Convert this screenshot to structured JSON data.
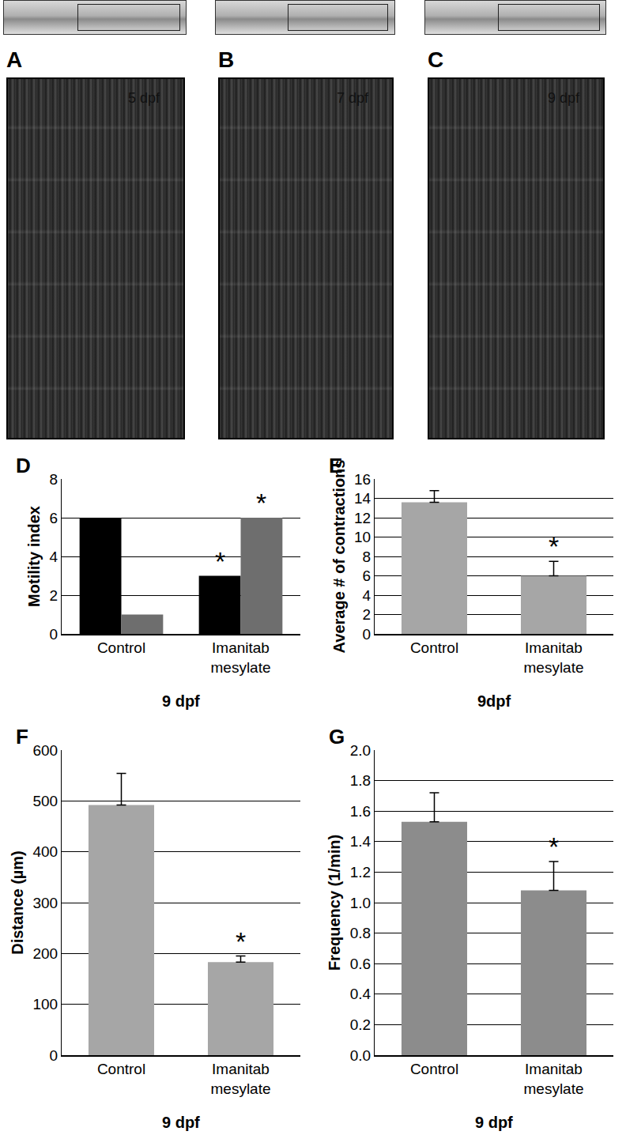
{
  "image_panels": [
    {
      "letter": "A",
      "label": "5 dpf"
    },
    {
      "letter": "B",
      "label": "7 dpf"
    },
    {
      "letter": "C",
      "label": "9 dpf"
    }
  ],
  "chart_data": [
    {
      "type": "bar",
      "title": "D",
      "xlabel": "9 dpf",
      "ylabel": "Motility index",
      "categories": [
        "Control",
        "Imanitab mesylate"
      ],
      "series": [
        {
          "color": "#000000",
          "values": [
            6,
            3
          ]
        },
        {
          "color": "#6e6e6e",
          "values": [
            1,
            6
          ]
        }
      ],
      "ylim": [
        0,
        8
      ],
      "yticks": [
        0,
        2,
        4,
        6,
        8
      ],
      "grid": true,
      "annotations": [
        {
          "text": "*",
          "category": 1,
          "series": 0
        },
        {
          "text": "*",
          "category": 1,
          "series": 1
        }
      ]
    },
    {
      "type": "bar",
      "title": "E",
      "xlabel": "9dpf",
      "ylabel": "Average # of contractions",
      "categories": [
        "Control",
        "Imanitab mesylate"
      ],
      "series": [
        {
          "color": "#a6a6a6",
          "values": [
            13.6,
            6.0
          ],
          "errors": [
            1.2,
            1.5
          ]
        }
      ],
      "ylim": [
        0,
        16
      ],
      "yticks": [
        0,
        2,
        4,
        6,
        8,
        10,
        12,
        14,
        16
      ],
      "grid": true,
      "annotations": [
        {
          "text": "*",
          "category": 1,
          "series": 0
        }
      ]
    },
    {
      "type": "bar",
      "title": "F",
      "xlabel": "9 dpf",
      "ylabel": "Distance (µm)",
      "categories": [
        "Control",
        "Imanitab mesylate"
      ],
      "series": [
        {
          "color": "#a6a6a6",
          "values": [
            492,
            183
          ],
          "errors": [
            62,
            12
          ]
        }
      ],
      "ylim": [
        0,
        600
      ],
      "yticks": [
        0,
        100,
        200,
        300,
        400,
        500,
        600
      ],
      "grid": true,
      "annotations": [
        {
          "text": "*",
          "category": 1,
          "series": 0
        }
      ]
    },
    {
      "type": "bar",
      "title": "G",
      "xlabel": "9 dpf",
      "ylabel": "Frequency (1/min)",
      "categories": [
        "Control",
        "Imanitab mesylate"
      ],
      "series": [
        {
          "color": "#8c8c8c",
          "values": [
            1.53,
            1.08
          ],
          "errors": [
            0.19,
            0.19
          ]
        }
      ],
      "ylim": [
        0,
        2
      ],
      "yticks": [
        {
          "value": 0,
          "label": "0.0"
        },
        {
          "value": 0.2,
          "label": "0.2"
        },
        {
          "value": 0.4,
          "label": "0.4"
        },
        {
          "value": 0.6,
          "label": "0.6"
        },
        {
          "value": 0.8,
          "label": "0.8"
        },
        {
          "value": 1,
          "label": "1.0"
        },
        {
          "value": 1.2,
          "label": "1.2"
        },
        {
          "value": 1.4,
          "label": "1.4"
        },
        {
          "value": 1.6,
          "label": "1.6"
        },
        {
          "value": 1.8,
          "label": "1.8"
        },
        {
          "value": 2,
          "label": "2.0"
        }
      ],
      "grid": true,
      "annotations": [
        {
          "text": "*",
          "category": 1,
          "series": 0
        }
      ]
    }
  ]
}
